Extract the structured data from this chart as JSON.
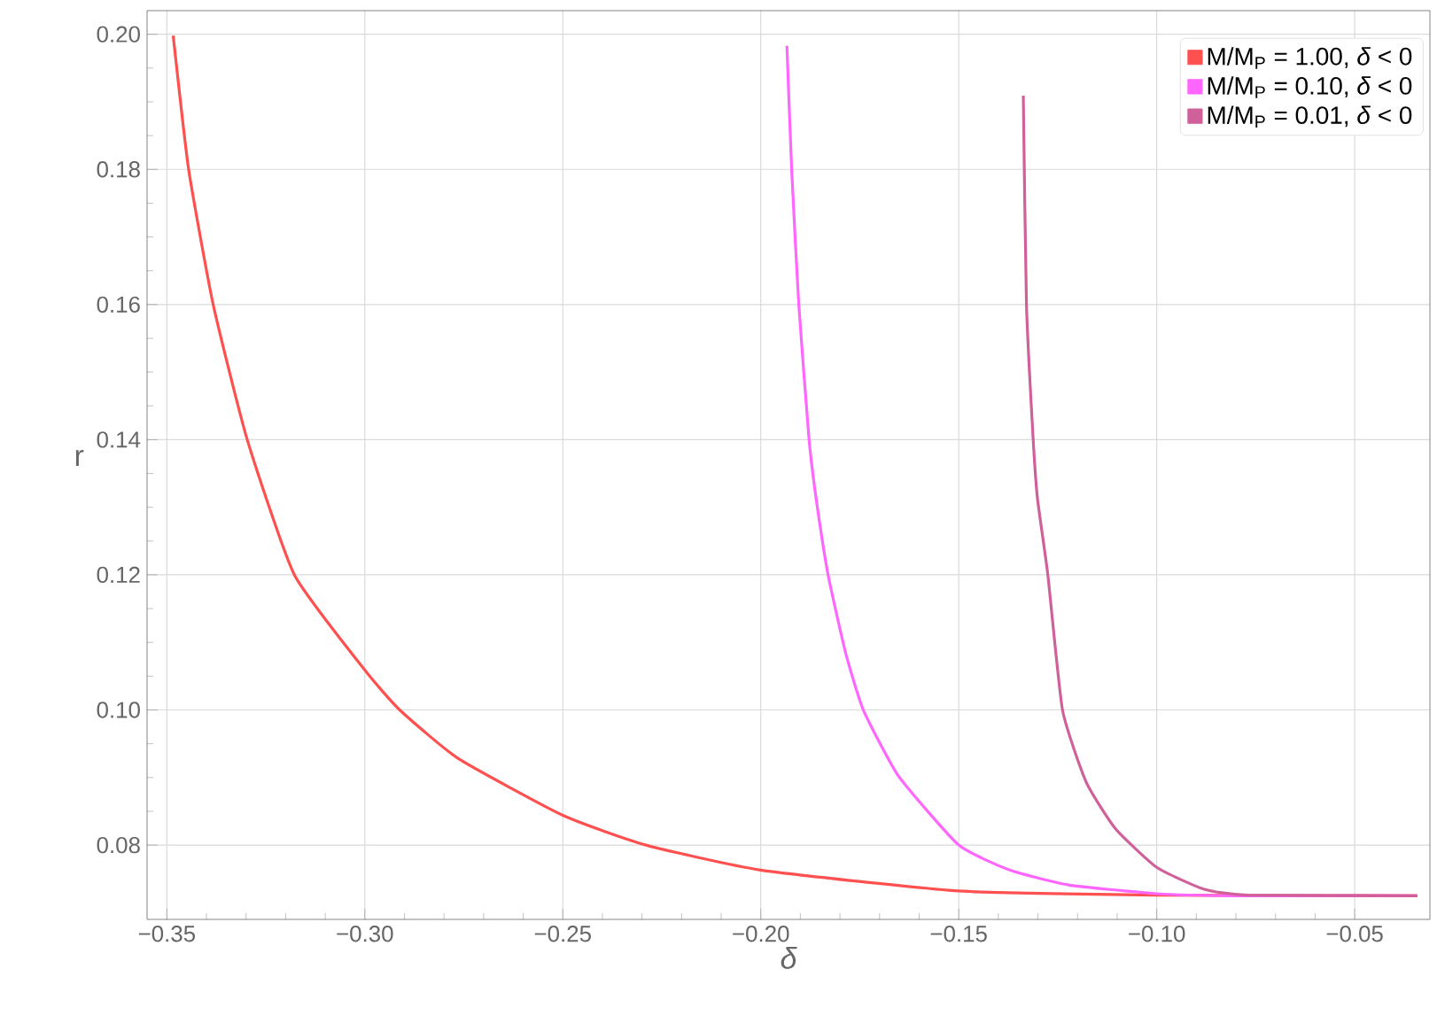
{
  "chart_data": {
    "type": "line",
    "xlabel": "δ",
    "ylabel": "r",
    "xlim": [
      -0.355,
      -0.031
    ],
    "ylim": [
      0.069,
      0.2035
    ],
    "xticks": [
      {
        "value": -0.35,
        "label": "−0.35"
      },
      {
        "value": -0.3,
        "label": "−0.30"
      },
      {
        "value": -0.25,
        "label": "−0.25"
      },
      {
        "value": -0.2,
        "label": "−0.20"
      },
      {
        "value": -0.15,
        "label": "−0.15"
      },
      {
        "value": -0.1,
        "label": "−0.10"
      },
      {
        "value": -0.05,
        "label": "−0.05"
      }
    ],
    "yticks": [
      {
        "value": 0.08,
        "label": "0.08"
      },
      {
        "value": 0.1,
        "label": "0.10"
      },
      {
        "value": 0.12,
        "label": "0.12"
      },
      {
        "value": 0.14,
        "label": "0.14"
      },
      {
        "value": 0.16,
        "label": "0.16"
      },
      {
        "value": 0.18,
        "label": "0.18"
      },
      {
        "value": 0.2,
        "label": "0.20"
      }
    ],
    "grid": true,
    "legend": "top right",
    "marker": "none",
    "line_style": "solid",
    "series": [
      {
        "name": "M/M$_{P}$ = 1.00,  *δ* < 0",
        "color": "#ff5050",
        "x": [
          -0.3484,
          -0.3445,
          -0.3383,
          -0.3297,
          -0.3178,
          -0.3,
          -0.2912,
          -0.2764,
          -0.25,
          -0.229,
          -0.2,
          -0.15,
          -0.1,
          -0.0342
        ],
        "values": [
          0.1998,
          0.18,
          0.16,
          0.14,
          0.12,
          0.1059,
          0.1,
          0.0928,
          0.0844,
          0.08,
          0.0763,
          0.0732,
          0.0726,
          0.0725
        ]
      },
      {
        "name": "M/M$_{P}$ = 0.10,  *δ* < 0",
        "color": "#ff66ff",
        "x": [
          -0.1934,
          -0.1922,
          -0.1904,
          -0.1878,
          -0.186,
          -0.183,
          -0.1786,
          -0.1741,
          -0.1652,
          -0.15,
          -0.1371,
          -0.1223,
          -0.1,
          -0.0808,
          -0.0342
        ],
        "values": [
          0.1983,
          0.18,
          0.16,
          0.14,
          0.1312,
          0.12,
          0.1085,
          0.1,
          0.0902,
          0.08,
          0.0763,
          0.0741,
          0.0728,
          0.0725,
          0.0725
        ]
      },
      {
        "name": "M/M$_{P}$ = 0.01,  *δ* < 0",
        "color": "#d0609a",
        "x": [
          -0.1337,
          -0.1329,
          -0.1312,
          -0.1301,
          -0.1275,
          -0.1238,
          -0.1178,
          -0.1104,
          -0.1,
          -0.0882,
          -0.0771,
          -0.0342
        ],
        "values": [
          0.1909,
          0.16,
          0.14,
          0.1312,
          0.12,
          0.1,
          0.0893,
          0.0824,
          0.0767,
          0.0735,
          0.0726,
          0.0725
        ]
      }
    ]
  }
}
